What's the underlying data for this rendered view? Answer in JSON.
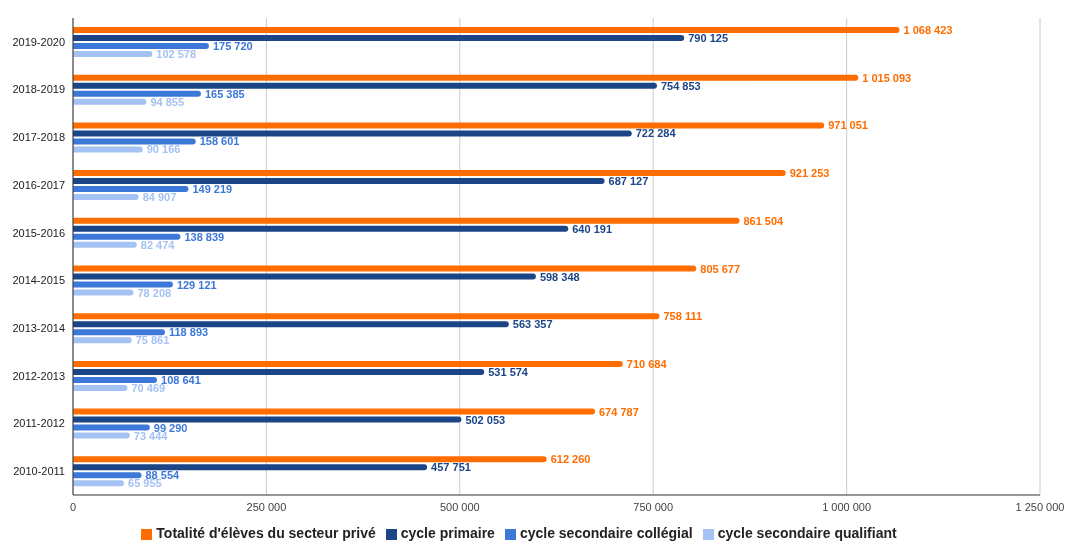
{
  "chart_data": {
    "type": "bar",
    "orientation": "horizontal",
    "categories": [
      "2019-2020",
      "2018-2019",
      "2017-2018",
      "2016-2017",
      "2015-2016",
      "2014-2015",
      "2013-2014",
      "2012-2013",
      "2011-2012",
      "2010-2011"
    ],
    "series": [
      {
        "name": "Totalité d'élèves du secteur privé",
        "color": "#ff6d01",
        "values": [
          1068423,
          1015093,
          971051,
          921253,
          861504,
          805677,
          758111,
          710684,
          674787,
          612260
        ],
        "value_labels": [
          "1 068 423",
          "1 015 093",
          "971 051",
          "921 253",
          "861 504",
          "805 677",
          "758 111",
          "710 684",
          "674 787",
          "612 260"
        ]
      },
      {
        "name": "cycle primaire",
        "color": "#1c4587",
        "values": [
          790125,
          754853,
          722284,
          687127,
          640191,
          598348,
          563357,
          531574,
          502053,
          457751
        ],
        "value_labels": [
          "790 125",
          "754 853",
          "722 284",
          "687 127",
          "640 191",
          "598 348",
          "563 357",
          "531 574",
          "502 053",
          "457 751"
        ]
      },
      {
        "name": "cycle secondaire collégial",
        "color": "#3c78d8",
        "values": [
          175720,
          165385,
          158601,
          149219,
          138839,
          129121,
          118893,
          108641,
          99290,
          88554
        ],
        "value_labels": [
          "175 720",
          "165 385",
          "158 601",
          "149 219",
          "138 839",
          "129 121",
          "118 893",
          "108 641",
          "99 290",
          "88 554"
        ]
      },
      {
        "name": "cycle secondaire qualifiant",
        "color": "#a4c2f4",
        "values": [
          102578,
          94855,
          90166,
          84907,
          82474,
          78208,
          75861,
          70469,
          73444,
          65955
        ],
        "value_labels": [
          "102 578",
          "94 855",
          "90 166",
          "84 907",
          "82 474",
          "78 208",
          "75 861",
          "70 469",
          "73 444",
          "65 955"
        ]
      }
    ],
    "xlim": [
      0,
      1250000
    ],
    "xticks": [
      {
        "value": 0,
        "label": "0"
      },
      {
        "value": 250000,
        "label": "250 000"
      },
      {
        "value": 500000,
        "label": "500 000"
      },
      {
        "value": 750000,
        "label": "750 000"
      },
      {
        "value": 1000000,
        "label": "1 000 000"
      },
      {
        "value": 1250000,
        "label": "1 250 000"
      }
    ],
    "grid": "x",
    "legend": "bottom"
  }
}
